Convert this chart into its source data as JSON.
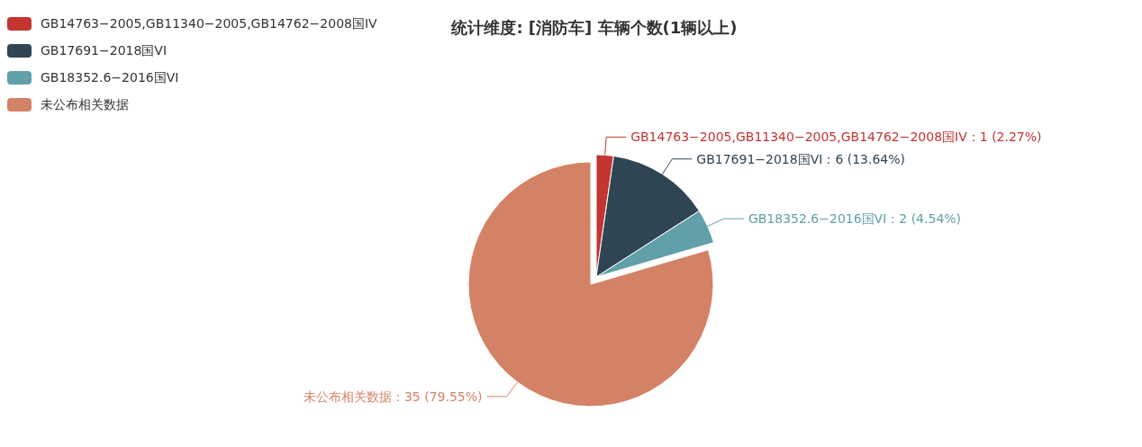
{
  "chart_data": {
    "type": "pie",
    "title": "统计维度: [消防车] 车辆个数(1辆以上)",
    "categories": [
      "GB14763−2005,GB11340−2005,GB14762−2008国IV",
      "GB17691−2018国VI",
      "GB18352.6−2016国VI",
      "未公布相关数据"
    ],
    "values": [
      1,
      6,
      2,
      35
    ],
    "colors": [
      "#c23531",
      "#2f4554",
      "#61a0a8",
      "#d48265"
    ],
    "value_labels": [
      "：1 (2.27%)",
      "：6 (13.64%)",
      "：2 (4.54%)",
      "：35 (79.55%)"
    ],
    "legend": "top left"
  }
}
